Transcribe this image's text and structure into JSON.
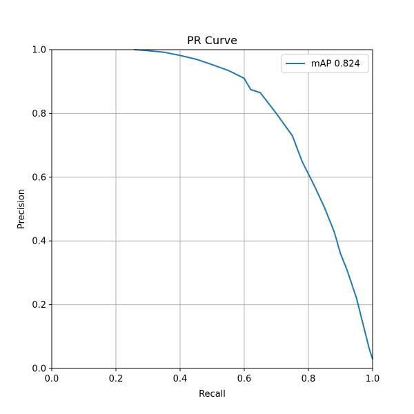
{
  "chart_data": {
    "type": "line",
    "title": "PR Curve",
    "xlabel": "Recall",
    "ylabel": "Precision",
    "xlim": [
      0.0,
      1.0
    ],
    "ylim": [
      0.0,
      1.0
    ],
    "xticks": [
      "0.0",
      "0.2",
      "0.4",
      "0.6",
      "0.8",
      "1.0"
    ],
    "yticks": [
      "0.0",
      "0.2",
      "0.4",
      "0.6",
      "0.8",
      "1.0"
    ],
    "grid": true,
    "legend_position": "top-right",
    "series": [
      {
        "name": "mAP 0.824",
        "color": "#1f77b4",
        "x": [
          0.258,
          0.3,
          0.35,
          0.4,
          0.45,
          0.5,
          0.55,
          0.6,
          0.62,
          0.65,
          0.7,
          0.75,
          0.78,
          0.8,
          0.82,
          0.85,
          0.88,
          0.9,
          0.92,
          0.95,
          0.97,
          0.99,
          1.0
        ],
        "y": [
          1.0,
          0.997,
          0.992,
          0.982,
          0.97,
          0.953,
          0.935,
          0.91,
          0.875,
          0.865,
          0.8,
          0.73,
          0.65,
          0.61,
          0.57,
          0.505,
          0.43,
          0.36,
          0.31,
          0.22,
          0.14,
          0.06,
          0.03
        ]
      }
    ]
  }
}
